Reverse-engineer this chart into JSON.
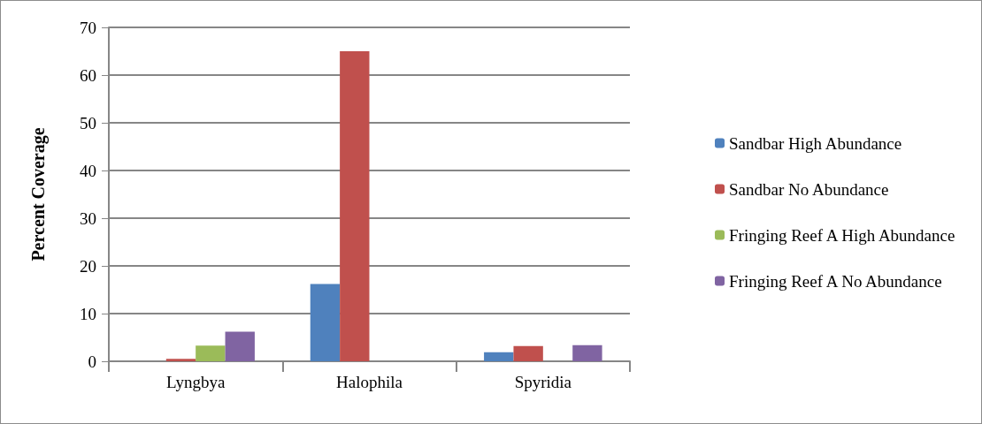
{
  "chart_data": {
    "type": "bar",
    "ylabel": "Percent Coverage",
    "categories": [
      "Lyngbya",
      "Halophila",
      "Spyridia"
    ],
    "series": [
      {
        "name": "Sandbar High Abundance",
        "color": "#4f81bd",
        "values": [
          0,
          16.2,
          1.9
        ]
      },
      {
        "name": "Sandbar No Abundance",
        "color": "#c0504d",
        "values": [
          0.5,
          65,
          3.2
        ]
      },
      {
        "name": "Fringing Reef A High Abundance",
        "color": "#9bbb59",
        "values": [
          3.3,
          0,
          0
        ]
      },
      {
        "name": "Fringing Reef A No Abundance",
        "color": "#8064a2",
        "values": [
          6.2,
          0,
          3.4
        ]
      }
    ],
    "ylim": [
      0,
      70
    ],
    "yticks": [
      0,
      10,
      20,
      30,
      40,
      50,
      60,
      70
    ],
    "grid": "y",
    "legend": "right"
  }
}
